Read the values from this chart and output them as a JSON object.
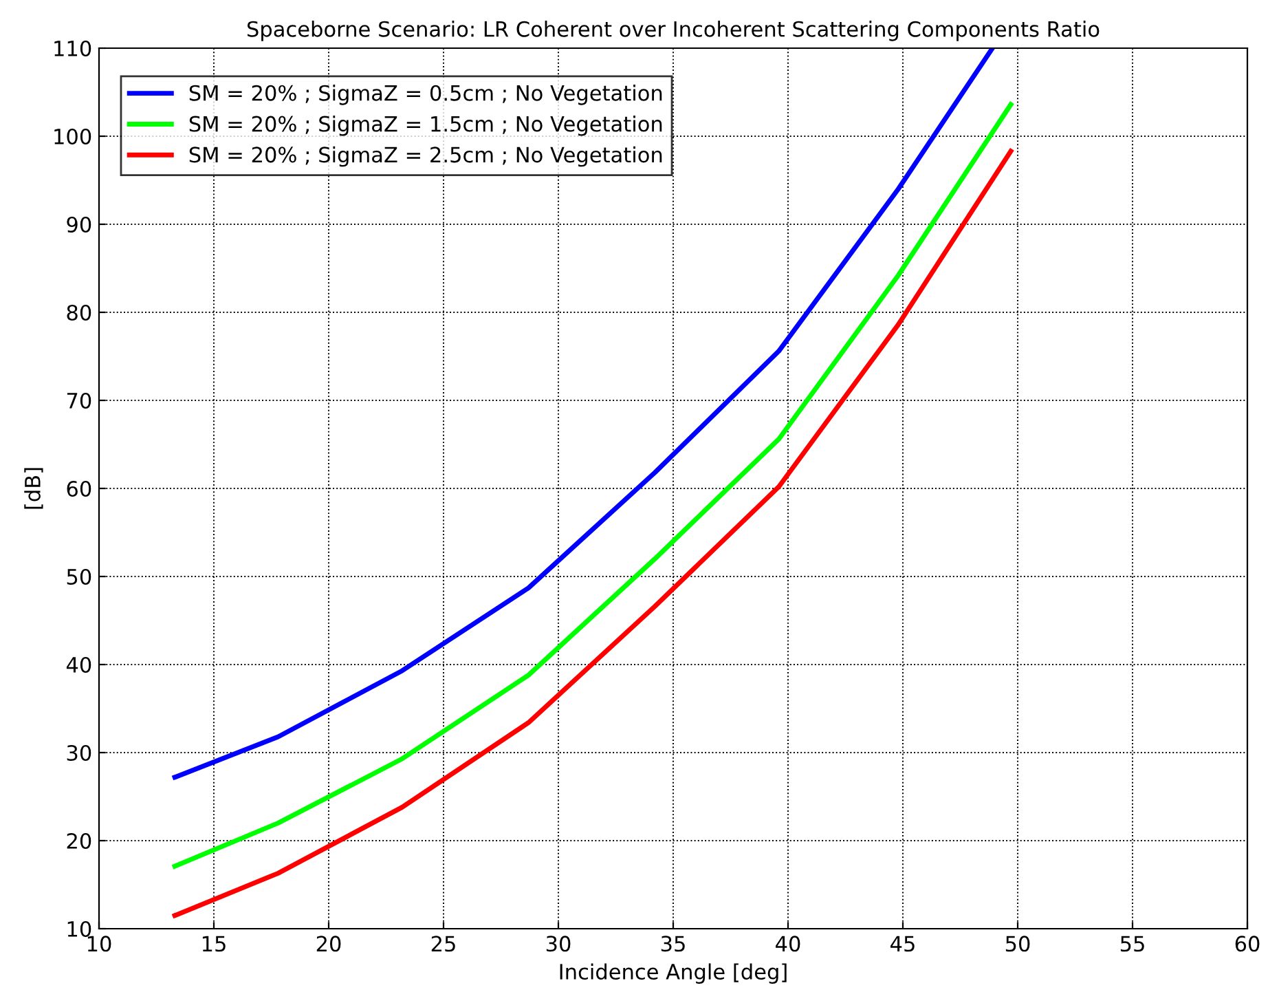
{
  "chart_data": {
    "type": "line",
    "title": "Spaceborne Scenario: LR Coherent over Incoherent Scattering Components Ratio",
    "xlabel": "Incidence Angle [deg]",
    "ylabel": "[dB]",
    "series": [
      {
        "name": "SM = 20% ; SigmaZ = 0.5cm ; No Vegetation",
        "color": "#0000ff",
        "x": [
          13.3,
          17.8,
          23.2,
          28.7,
          34.2,
          39.6,
          44.8,
          48.9
        ],
        "values": [
          27.2,
          31.8,
          39.3,
          48.7,
          61.8,
          75.6,
          94,
          110
        ]
      },
      {
        "name": "SM = 20% ; SigmaZ = 1.5cm ; No Vegetation",
        "color": "#00ff00",
        "x": [
          13.3,
          17.8,
          23.2,
          28.7,
          34.2,
          39.6,
          44.8,
          49.7
        ],
        "values": [
          17.1,
          22,
          29.3,
          38.8,
          52,
          65.6,
          84.2,
          103.6
        ]
      },
      {
        "name": "SM = 20% ; SigmaZ = 2.5cm ; No Vegetation",
        "color": "#ff0000",
        "x": [
          13.3,
          17.8,
          23.2,
          28.7,
          34.2,
          39.6,
          44.8,
          49.7
        ],
        "values": [
          11.5,
          16.3,
          23.8,
          33.4,
          46.6,
          60.2,
          78.6,
          98.3
        ]
      }
    ],
    "xlim": [
      10,
      60
    ],
    "xticks": [
      10,
      15,
      20,
      25,
      30,
      35,
      40,
      45,
      50,
      55,
      60
    ],
    "ylim": [
      10,
      110
    ],
    "yticks": [
      10,
      20,
      30,
      40,
      50,
      60,
      70,
      80,
      90,
      100,
      110
    ],
    "grid": true,
    "legend": "top left",
    "line_style": "solid",
    "marker": "none"
  }
}
